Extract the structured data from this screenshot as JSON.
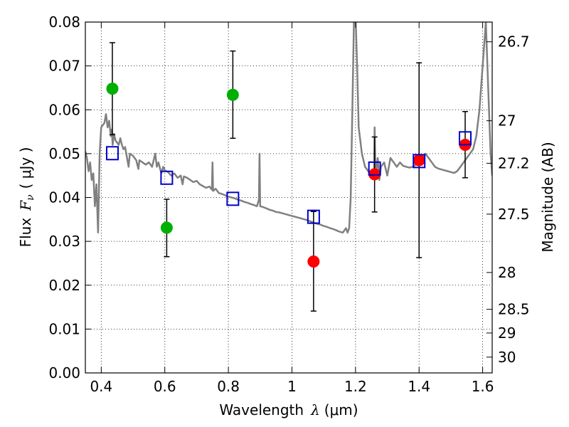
{
  "chart_data": {
    "type": "scatter",
    "xlabel": {
      "main": "Wavelength",
      "sym": "λ",
      "unit": "(μm)"
    },
    "ylabel": {
      "main": "Flux",
      "sym": "F",
      "sub": "ν",
      "unit": "( μJy )"
    },
    "y2label": "Magnitude (AB)",
    "xlim": [
      0.35,
      1.63
    ],
    "ylim": [
      0.0,
      0.08
    ],
    "grid": true,
    "x_ticks": [
      0.4,
      0.6,
      0.8,
      1.0,
      1.2,
      1.4,
      1.6
    ],
    "x_tick_labels": [
      "0.4",
      "0.6",
      "0.8",
      "1",
      "1.2",
      "1.4",
      "1.6"
    ],
    "y_ticks": [
      0.0,
      0.01,
      0.02,
      0.03,
      0.04,
      0.05,
      0.06,
      0.07,
      0.08
    ],
    "y_tick_labels": [
      "0.00",
      "0.01",
      "0.02",
      "0.03",
      "0.04",
      "0.05",
      "0.06",
      "0.07",
      "0.08"
    ],
    "mag_ticks": [
      {
        "label": "26.7",
        "flux": 0.0755
      },
      {
        "label": "27",
        "flux": 0.0575
      },
      {
        "label": "27.2",
        "flux": 0.0478
      },
      {
        "label": "27.5",
        "flux": 0.0362
      },
      {
        "label": "28",
        "flux": 0.0229
      },
      {
        "label": "28.5",
        "flux": 0.0145
      },
      {
        "label": "29",
        "flux": 0.0091
      },
      {
        "label": "30",
        "flux": 0.0036
      }
    ],
    "colors": {
      "green": "#00b000",
      "red": "#ff0000",
      "model_box": "#0000cc",
      "sed": "#808080",
      "errorbar": "#000000"
    },
    "series": [
      {
        "marker": "circle-green",
        "points": [
          {
            "x": 0.435,
            "y": 0.0648,
            "lo": 0.0543,
            "hi": 0.0753
          },
          {
            "x": 0.606,
            "y": 0.0331,
            "lo": 0.0265,
            "hi": 0.0396
          },
          {
            "x": 0.814,
            "y": 0.0634,
            "lo": 0.0535,
            "hi": 0.0734
          }
        ]
      },
      {
        "marker": "circle-red",
        "points": [
          {
            "x": 1.068,
            "y": 0.0254,
            "lo": 0.0141,
            "hi": 0.0368
          },
          {
            "x": 1.26,
            "y": 0.0453,
            "lo": 0.0367,
            "hi": 0.0538
          },
          {
            "x": 1.4,
            "y": 0.0485,
            "lo": 0.0263,
            "hi": 0.0707
          },
          {
            "x": 1.545,
            "y": 0.052,
            "lo": 0.0445,
            "hi": 0.0596
          }
        ]
      },
      {
        "marker": "square-blue",
        "points": [
          {
            "x": 0.435,
            "y": 0.0501
          },
          {
            "x": 0.606,
            "y": 0.0445
          },
          {
            "x": 0.814,
            "y": 0.0397
          },
          {
            "x": 1.068,
            "y": 0.0356
          },
          {
            "x": 1.26,
            "y": 0.0466
          },
          {
            "x": 1.4,
            "y": 0.0483
          },
          {
            "x": 1.545,
            "y": 0.0535
          }
        ]
      }
    ],
    "sed_curve": [
      [
        0.35,
        0.0505
      ],
      [
        0.355,
        0.049
      ],
      [
        0.36,
        0.046
      ],
      [
        0.365,
        0.048
      ],
      [
        0.37,
        0.044
      ],
      [
        0.375,
        0.0455
      ],
      [
        0.38,
        0.038
      ],
      [
        0.385,
        0.043
      ],
      [
        0.39,
        0.032
      ],
      [
        0.395,
        0.05
      ],
      [
        0.4,
        0.056
      ],
      [
        0.405,
        0.0565
      ],
      [
        0.41,
        0.057
      ],
      [
        0.415,
        0.059
      ],
      [
        0.42,
        0.056
      ],
      [
        0.425,
        0.0575
      ],
      [
        0.43,
        0.054
      ],
      [
        0.433,
        0.0555
      ],
      [
        0.436,
        0.052
      ],
      [
        0.44,
        0.0545
      ],
      [
        0.445,
        0.053
      ],
      [
        0.45,
        0.0525
      ],
      [
        0.455,
        0.052
      ],
      [
        0.46,
        0.0535
      ],
      [
        0.465,
        0.052
      ],
      [
        0.47,
        0.051
      ],
      [
        0.475,
        0.0515
      ],
      [
        0.48,
        0.0495
      ],
      [
        0.486,
        0.047
      ],
      [
        0.49,
        0.05
      ],
      [
        0.5,
        0.0495
      ],
      [
        0.51,
        0.0485
      ],
      [
        0.517,
        0.0465
      ],
      [
        0.52,
        0.0485
      ],
      [
        0.53,
        0.048
      ],
      [
        0.54,
        0.0475
      ],
      [
        0.55,
        0.048
      ],
      [
        0.56,
        0.047
      ],
      [
        0.57,
        0.05
      ],
      [
        0.575,
        0.047
      ],
      [
        0.58,
        0.048
      ],
      [
        0.589,
        0.0455
      ],
      [
        0.595,
        0.047
      ],
      [
        0.6,
        0.0462
      ],
      [
        0.61,
        0.0458
      ],
      [
        0.62,
        0.045
      ],
      [
        0.63,
        0.0455
      ],
      [
        0.64,
        0.0445
      ],
      [
        0.65,
        0.045
      ],
      [
        0.656,
        0.043
      ],
      [
        0.66,
        0.0448
      ],
      [
        0.67,
        0.0445
      ],
      [
        0.68,
        0.044
      ],
      [
        0.69,
        0.0435
      ],
      [
        0.7,
        0.0438
      ],
      [
        0.71,
        0.043
      ],
      [
        0.72,
        0.0426
      ],
      [
        0.73,
        0.0422
      ],
      [
        0.74,
        0.0425
      ],
      [
        0.748,
        0.0418
      ],
      [
        0.75,
        0.048
      ],
      [
        0.752,
        0.0415
      ],
      [
        0.76,
        0.042
      ],
      [
        0.77,
        0.041
      ],
      [
        0.78,
        0.0408
      ],
      [
        0.79,
        0.0405
      ],
      [
        0.8,
        0.0402
      ],
      [
        0.81,
        0.04
      ],
      [
        0.82,
        0.0398
      ],
      [
        0.83,
        0.0395
      ],
      [
        0.84,
        0.0393
      ],
      [
        0.85,
        0.039
      ],
      [
        0.86,
        0.0388
      ],
      [
        0.87,
        0.0385
      ],
      [
        0.88,
        0.0383
      ],
      [
        0.89,
        0.038
      ],
      [
        0.896,
        0.0395
      ],
      [
        0.898,
        0.05
      ],
      [
        0.9,
        0.038
      ],
      [
        0.91,
        0.0378
      ],
      [
        0.92,
        0.0375
      ],
      [
        0.93,
        0.0372
      ],
      [
        0.94,
        0.037
      ],
      [
        0.95,
        0.0367
      ],
      [
        0.96,
        0.0366
      ],
      [
        0.97,
        0.0364
      ],
      [
        0.98,
        0.0362
      ],
      [
        0.99,
        0.036
      ],
      [
        1.0,
        0.0358
      ],
      [
        1.01,
        0.0356
      ],
      [
        1.02,
        0.0354
      ],
      [
        1.03,
        0.0352
      ],
      [
        1.04,
        0.035
      ],
      [
        1.05,
        0.0348
      ],
      [
        1.06,
        0.0345
      ],
      [
        1.07,
        0.0342
      ],
      [
        1.08,
        0.034
      ],
      [
        1.09,
        0.0338
      ],
      [
        1.1,
        0.0335
      ],
      [
        1.11,
        0.0333
      ],
      [
        1.12,
        0.033
      ],
      [
        1.13,
        0.0328
      ],
      [
        1.14,
        0.0325
      ],
      [
        1.15,
        0.0322
      ],
      [
        1.16,
        0.032
      ],
      [
        1.17,
        0.033
      ],
      [
        1.175,
        0.032
      ],
      [
        1.18,
        0.033
      ],
      [
        1.185,
        0.04
      ],
      [
        1.19,
        0.06
      ],
      [
        1.195,
        0.08
      ],
      [
        1.2,
        0.082
      ],
      [
        1.205,
        0.07
      ],
      [
        1.21,
        0.056
      ],
      [
        1.22,
        0.05
      ],
      [
        1.23,
        0.047
      ],
      [
        1.24,
        0.046
      ],
      [
        1.25,
        0.045
      ],
      [
        1.258,
        0.045
      ],
      [
        1.26,
        0.056
      ],
      [
        1.263,
        0.045
      ],
      [
        1.27,
        0.049
      ],
      [
        1.275,
        0.044
      ],
      [
        1.28,
        0.047
      ],
      [
        1.29,
        0.048
      ],
      [
        1.3,
        0.045
      ],
      [
        1.31,
        0.049
      ],
      [
        1.32,
        0.048
      ],
      [
        1.33,
        0.047
      ],
      [
        1.34,
        0.048
      ],
      [
        1.35,
        0.0472
      ],
      [
        1.36,
        0.047
      ],
      [
        1.37,
        0.0468
      ],
      [
        1.38,
        0.047
      ],
      [
        1.39,
        0.0475
      ],
      [
        1.4,
        0.048
      ],
      [
        1.41,
        0.049
      ],
      [
        1.42,
        0.05
      ],
      [
        1.43,
        0.049
      ],
      [
        1.44,
        0.048
      ],
      [
        1.45,
        0.047
      ],
      [
        1.46,
        0.0466
      ],
      [
        1.47,
        0.0464
      ],
      [
        1.48,
        0.0462
      ],
      [
        1.49,
        0.046
      ],
      [
        1.5,
        0.0458
      ],
      [
        1.51,
        0.0456
      ],
      [
        1.52,
        0.046
      ],
      [
        1.53,
        0.047
      ],
      [
        1.54,
        0.048
      ],
      [
        1.55,
        0.049
      ],
      [
        1.56,
        0.05
      ],
      [
        1.57,
        0.051
      ],
      [
        1.58,
        0.054
      ],
      [
        1.59,
        0.06
      ],
      [
        1.6,
        0.07
      ],
      [
        1.61,
        0.08
      ],
      [
        1.615,
        0.07
      ],
      [
        1.62,
        0.06
      ],
      [
        1.625,
        0.05
      ],
      [
        1.63,
        0.045
      ]
    ]
  }
}
